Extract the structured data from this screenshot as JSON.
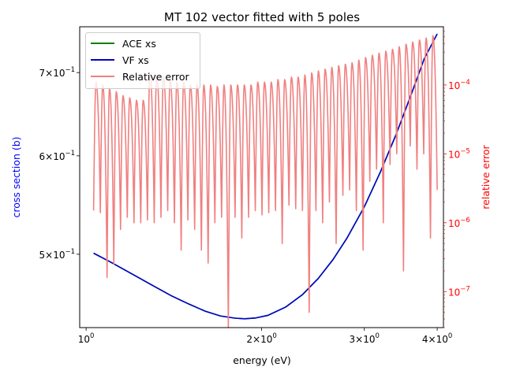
{
  "chart_data": {
    "type": "line",
    "title": "MT 102 vector fitted with 5 poles",
    "xlabel": "energy (eV)",
    "ylabel_left": "cross section (b)",
    "ylabel_right": "relative error",
    "x_scale": "log",
    "y_left_scale": "log",
    "y_right_scale": "log",
    "xlim": [
      0.975,
      4.1
    ],
    "ylim_left": [
      0.4365,
      0.762
    ],
    "ylim_right": [
      3e-08,
      0.0007
    ],
    "x_ticks": [
      {
        "value": 1,
        "label": "10^0"
      },
      {
        "value": 2,
        "label": "2×10^0"
      },
      {
        "value": 3,
        "label": "3×10^0"
      },
      {
        "value": 4,
        "label": "4×10^0"
      }
    ],
    "y_left_ticks": [
      {
        "value": 0.5,
        "label": "5×10^-1"
      },
      {
        "value": 0.6,
        "label": "6×10^-1"
      },
      {
        "value": 0.7,
        "label": "7×10^-1"
      }
    ],
    "y_right_ticks": [
      {
        "value": 1e-07,
        "label": "10^-7"
      },
      {
        "value": 1e-06,
        "label": "10^-6"
      },
      {
        "value": 1e-05,
        "label": "10^-5"
      },
      {
        "value": 0.0001,
        "label": "10^-4"
      }
    ],
    "series": [
      {
        "name": "ACE xs",
        "axis": "left",
        "color": "#008000",
        "x": [
          1.03,
          1.1,
          1.2,
          1.3,
          1.4,
          1.5,
          1.6,
          1.7,
          1.8,
          1.87,
          1.95,
          2.05,
          2.2,
          2.35,
          2.5,
          2.65,
          2.8,
          3.0,
          3.2,
          3.4,
          3.6,
          3.8,
          4.0
        ],
        "y": [
          0.501,
          0.493,
          0.482,
          0.472,
          0.463,
          0.456,
          0.45,
          0.446,
          0.4442,
          0.4437,
          0.4443,
          0.4465,
          0.4535,
          0.464,
          0.478,
          0.495,
          0.515,
          0.546,
          0.583,
          0.624,
          0.67,
          0.718,
          0.752
        ]
      },
      {
        "name": "VF xs",
        "axis": "left",
        "color": "#0000cc",
        "x": [
          1.03,
          1.1,
          1.2,
          1.3,
          1.4,
          1.5,
          1.6,
          1.7,
          1.8,
          1.87,
          1.95,
          2.05,
          2.2,
          2.35,
          2.5,
          2.65,
          2.8,
          3.0,
          3.2,
          3.4,
          3.6,
          3.8,
          4.0
        ],
        "y": [
          0.501,
          0.493,
          0.482,
          0.472,
          0.463,
          0.456,
          0.45,
          0.446,
          0.4442,
          0.4437,
          0.4443,
          0.4465,
          0.4535,
          0.464,
          0.478,
          0.495,
          0.515,
          0.546,
          0.583,
          0.624,
          0.67,
          0.718,
          0.752
        ]
      },
      {
        "name": "Relative error",
        "axis": "right",
        "color": "#f08080",
        "x_range": [
          1.03,
          4.0
        ],
        "start_value": 1.5e-06,
        "end_value": 3e-06,
        "lobes": [
          {
            "peak": 0.00011,
            "min": 1.4e-06
          },
          {
            "peak": 0.0001,
            "min": 1.6e-07
          },
          {
            "peak": 9e-05,
            "min": 2.5e-07
          },
          {
            "peak": 8e-05,
            "min": 8e-07
          },
          {
            "peak": 7e-05,
            "min": 1.2e-06
          },
          {
            "peak": 6.5e-05,
            "min": 1e-06
          },
          {
            "peak": 6e-05,
            "min": 1e-06
          },
          {
            "peak": 6e-05,
            "min": 1.1e-06
          },
          {
            "peak": 0.00015,
            "min": 1e-06
          },
          {
            "peak": 0.00014,
            "min": 1.2e-06
          },
          {
            "peak": 0.00013,
            "min": 1.5e-06
          },
          {
            "peak": 0.00012,
            "min": 1e-06
          },
          {
            "peak": 0.00011,
            "min": 4e-07
          },
          {
            "peak": 0.00011,
            "min": 1.1e-06
          },
          {
            "peak": 0.0001,
            "min": 8e-07
          },
          {
            "peak": 0.0001,
            "min": 4e-07
          },
          {
            "peak": 0.0001,
            "min": 2.6e-07
          },
          {
            "peak": 0.0001,
            "min": 1e-06
          },
          {
            "peak": 9.5e-05,
            "min": 1.2e-06
          },
          {
            "peak": 0.0001,
            "min": 3e-08
          },
          {
            "peak": 0.0001,
            "min": 1.2e-06
          },
          {
            "peak": 0.0001,
            "min": 6e-07
          },
          {
            "peak": 0.0001,
            "min": 1.2e-06
          },
          {
            "peak": 0.0001,
            "min": 1.5e-06
          },
          {
            "peak": 0.00011,
            "min": 1.3e-06
          },
          {
            "peak": 0.00011,
            "min": 1.4e-06
          },
          {
            "peak": 0.00011,
            "min": 1.5e-06
          },
          {
            "peak": 0.00012,
            "min": 5e-07
          },
          {
            "peak": 0.00012,
            "min": 1.8e-06
          },
          {
            "peak": 0.00013,
            "min": 1.6e-06
          },
          {
            "peak": 0.00013,
            "min": 1.5e-06
          },
          {
            "peak": 0.00014,
            "min": 5e-08
          },
          {
            "peak": 0.00015,
            "min": 1.5e-06
          },
          {
            "peak": 0.00016,
            "min": 1e-06
          },
          {
            "peak": 0.00017,
            "min": 2e-06
          },
          {
            "peak": 0.00018,
            "min": 5e-07
          },
          {
            "peak": 0.00019,
            "min": 2.5e-06
          },
          {
            "peak": 0.0002,
            "min": 3e-06
          },
          {
            "peak": 0.00021,
            "min": 1.5e-06
          },
          {
            "peak": 0.00023,
            "min": 4e-07
          },
          {
            "peak": 0.00025,
            "min": 4e-06
          },
          {
            "peak": 0.00027,
            "min": 6e-06
          },
          {
            "peak": 0.00029,
            "min": 1e-06
          },
          {
            "peak": 0.00031,
            "min": 7e-06
          },
          {
            "peak": 0.00033,
            "min": 1e-05
          },
          {
            "peak": 0.00036,
            "min": 2e-07
          },
          {
            "peak": 0.00039,
            "min": 1.3e-05
          },
          {
            "peak": 0.00042,
            "min": 6e-06
          },
          {
            "peak": 0.00045,
            "min": 1e-05
          },
          {
            "peak": 0.00048,
            "min": 6e-07
          },
          {
            "peak": 0.00052,
            "min": 6e-06
          }
        ]
      }
    ],
    "legend_position": "upper-left",
    "grid": false
  }
}
